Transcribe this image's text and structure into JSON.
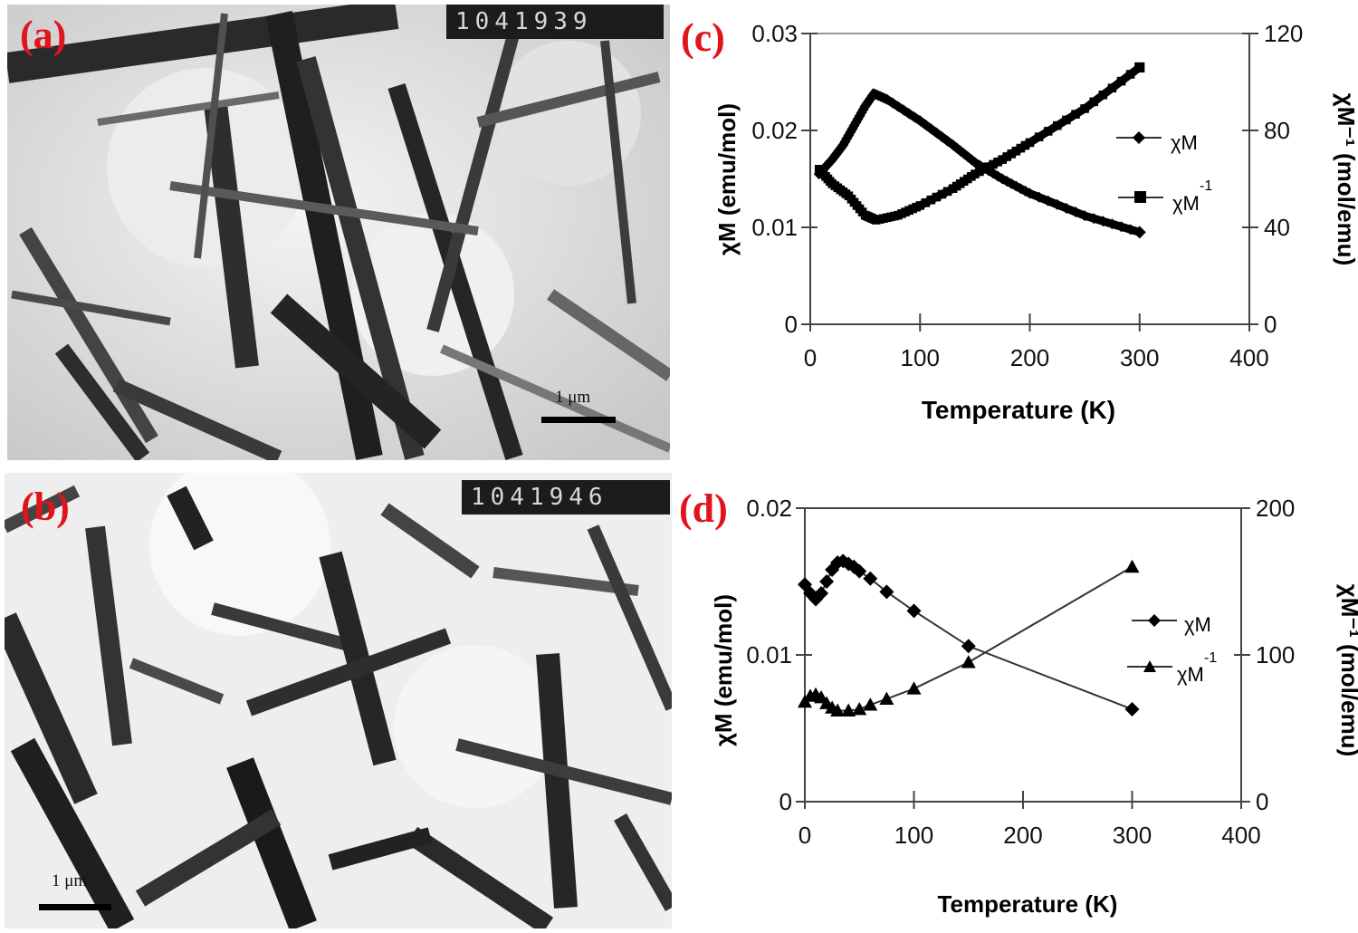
{
  "figure": {
    "panels": [
      {
        "id": "a",
        "label": "(a)",
        "type": "TEM micrograph",
        "counter": "1041939",
        "scale_bar": "1 μm"
      },
      {
        "id": "b",
        "label": "(b)",
        "type": "TEM micrograph",
        "counter": "1041946",
        "scale_bar": "1 μm"
      },
      {
        "id": "c",
        "label": "(c)"
      },
      {
        "id": "d",
        "label": "(d)"
      }
    ]
  },
  "chart_data": [
    {
      "panel": "(c)",
      "type": "scatter",
      "title": "",
      "xlabel": "Temperature (K)",
      "ylabel": "χM (emu/mol)",
      "y2label": "χM⁻¹ (mol/emu)",
      "xlim": [
        0,
        400
      ],
      "ylim": [
        0,
        0.03
      ],
      "y2lim": [
        0,
        120
      ],
      "xticks": [
        "0",
        "100",
        "200",
        "300",
        "400"
      ],
      "yticks": [
        "0",
        "0.01",
        "0.02",
        "0.03"
      ],
      "y2ticks": [
        "0",
        "40",
        "80",
        "120"
      ],
      "grid": false,
      "legend_position": "right-center",
      "series": [
        {
          "name": "χM",
          "marker": "diamond",
          "axis": "left",
          "x": [
            8,
            20,
            30,
            40,
            50,
            58,
            70,
            100,
            130,
            150,
            175,
            200,
            250,
            300
          ],
          "values": [
            0.0155,
            0.017,
            0.0185,
            0.0205,
            0.0225,
            0.0238,
            0.0232,
            0.021,
            0.0185,
            0.0167,
            0.015,
            0.0135,
            0.0112,
            0.0095
          ]
        },
        {
          "name": "χM⁻¹",
          "marker": "square",
          "axis": "right",
          "x": [
            8,
            20,
            35,
            50,
            60,
            80,
            100,
            130,
            150,
            175,
            200,
            250,
            300
          ],
          "values": [
            64,
            58,
            53,
            45,
            43,
            45,
            49,
            56,
            62,
            68,
            75,
            89,
            106
          ]
        }
      ]
    },
    {
      "panel": "(d)",
      "type": "line",
      "title": "",
      "xlabel": "Temperature (K)",
      "ylabel": "χM (emu/mol)",
      "y2label": "χM⁻¹ (mol/emu)",
      "xlim": [
        0,
        400
      ],
      "ylim": [
        0,
        0.02
      ],
      "y2lim": [
        0,
        200
      ],
      "xticks": [
        "0",
        "100",
        "200",
        "300",
        "400"
      ],
      "yticks": [
        "0",
        "0.01",
        "0.02"
      ],
      "y2ticks": [
        "0",
        "100",
        "200"
      ],
      "grid": false,
      "legend_position": "right-center",
      "series": [
        {
          "name": "χM",
          "marker": "diamond",
          "axis": "left",
          "x": [
            0,
            5,
            10,
            15,
            20,
            25,
            30,
            35,
            40,
            45,
            50,
            60,
            75,
            100,
            150,
            300
          ],
          "values": [
            0.0148,
            0.0142,
            0.0138,
            0.0142,
            0.015,
            0.0158,
            0.0163,
            0.0164,
            0.0162,
            0.016,
            0.0157,
            0.0152,
            0.0143,
            0.013,
            0.0106,
            0.0063
          ]
        },
        {
          "name": "χM⁻¹",
          "marker": "triangle",
          "axis": "right",
          "x": [
            0,
            5,
            10,
            15,
            20,
            25,
            30,
            40,
            50,
            60,
            75,
            100,
            150,
            300
          ],
          "values": [
            68,
            72,
            73,
            71,
            67,
            64,
            62,
            62,
            63,
            66,
            70,
            77,
            95,
            160
          ]
        }
      ]
    }
  ],
  "legend": {
    "chi": "χM",
    "chi_inv": "χM",
    "chi_inv_sup": "-1"
  },
  "axis_text": {
    "xlabel": "Temperature (K)",
    "ylabel_chi": "χM (emu/mol)",
    "ylabel_inv": "χM⁻¹ (mol/emu)"
  }
}
